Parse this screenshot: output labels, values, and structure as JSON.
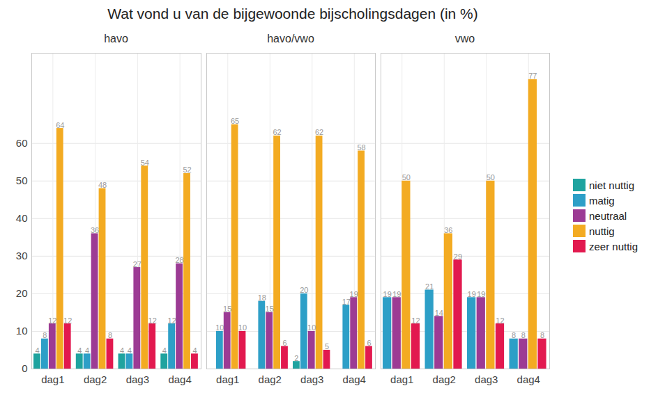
{
  "chart_data": {
    "type": "bar",
    "title": "Wat vond u van de bijgewoonde bijscholingsdagen (in %)",
    "categories": [
      "dag1",
      "dag2",
      "dag3",
      "dag4"
    ],
    "ylim": [
      0,
      84
    ],
    "yticks": [
      0,
      10,
      20,
      30,
      40,
      50,
      60
    ],
    "grid": true,
    "legend": "right",
    "data_labels": true,
    "facets": [
      {
        "title": "havo",
        "series": [
          {
            "name": "niet nuttig",
            "color": "#1fa39f",
            "values": [
              4,
              4,
              4,
              4
            ]
          },
          {
            "name": "matig",
            "color": "#2d9fc7",
            "values": [
              8,
              4,
              4,
              12
            ]
          },
          {
            "name": "neutraal",
            "color": "#9c3b94",
            "values": [
              12,
              36,
              27,
              28
            ]
          },
          {
            "name": "nuttig",
            "color": "#f3ab22",
            "values": [
              64,
              48,
              54,
              52
            ]
          },
          {
            "name": "zeer nuttig",
            "color": "#e2194f",
            "values": [
              12,
              8,
              12,
              4
            ]
          }
        ]
      },
      {
        "title": "havo/vwo",
        "series": [
          {
            "name": "niet nuttig",
            "color": "#1fa39f",
            "values": [
              null,
              null,
              2,
              null
            ]
          },
          {
            "name": "matig",
            "color": "#2d9fc7",
            "values": [
              10,
              18,
              20,
              17
            ]
          },
          {
            "name": "neutraal",
            "color": "#9c3b94",
            "values": [
              15,
              15,
              10,
              19
            ]
          },
          {
            "name": "nuttig",
            "color": "#f3ab22",
            "values": [
              65,
              62,
              62,
              58
            ]
          },
          {
            "name": "zeer nuttig",
            "color": "#e2194f",
            "values": [
              10,
              6,
              5,
              6
            ]
          }
        ]
      },
      {
        "title": "vwo",
        "series": [
          {
            "name": "niet nuttig",
            "color": "#1fa39f",
            "values": [
              null,
              null,
              null,
              null
            ]
          },
          {
            "name": "matig",
            "color": "#2d9fc7",
            "values": [
              19,
              21,
              19,
              8
            ]
          },
          {
            "name": "neutraal",
            "color": "#9c3b94",
            "values": [
              19,
              14,
              19,
              8
            ]
          },
          {
            "name": "nuttig",
            "color": "#f3ab22",
            "values": [
              50,
              36,
              50,
              77
            ]
          },
          {
            "name": "zeer nuttig",
            "color": "#e2194f",
            "values": [
              12,
              29,
              12,
              8
            ]
          }
        ]
      }
    ]
  }
}
